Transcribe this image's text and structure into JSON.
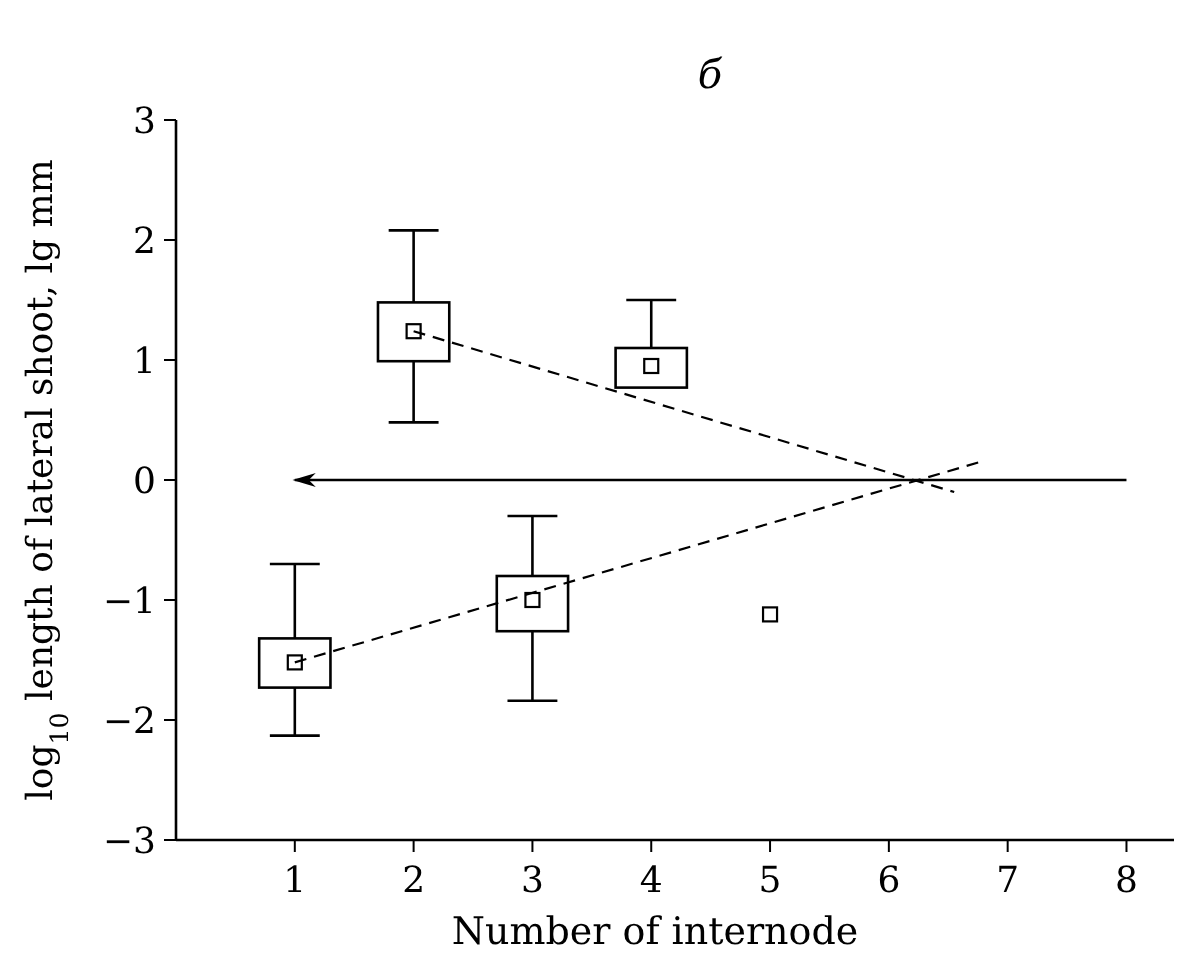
{
  "chart_data": {
    "type": "box",
    "title": "б",
    "xlabel": "Number of internode",
    "ylabel": "log$_{10}$ length of lateral shoot, lg mm",
    "xlim": [
      0,
      8.4
    ],
    "xticks": [
      1,
      2,
      3,
      4,
      5,
      6,
      7,
      8
    ],
    "ylim": [
      -3,
      3
    ],
    "yticks": [
      {
        "value": -3,
        "label": "−3"
      },
      {
        "value": -2,
        "label": "−2"
      },
      {
        "value": -1,
        "label": "−1"
      },
      0,
      1,
      2,
      3
    ],
    "grid": false,
    "ref_lines": [
      {
        "axis": "y",
        "value": 0,
        "color": "#000000"
      }
    ],
    "series": [
      {
        "color": "#000000",
        "x": [
          1,
          2,
          3,
          4
        ],
        "boxes": [
          {
            "low": -2.13,
            "q1": -1.73,
            "q3": -1.32,
            "high": -0.7,
            "mean": -1.52
          },
          {
            "low": 0.48,
            "q1": 0.99,
            "q3": 1.48,
            "high": 2.08,
            "mean": 1.24
          },
          {
            "low": -1.84,
            "q1": -1.26,
            "q3": -0.8,
            "high": -0.3,
            "mean": -1.0
          },
          {
            "low": 0.77,
            "q1": 0.77,
            "q3": 1.1,
            "high": 1.5,
            "mean": 0.95
          }
        ]
      },
      {
        "type": "scatter",
        "color": "#000000",
        "x": [
          5
        ],
        "values": [
          -1.12
        ],
        "marker": "square"
      },
      {
        "type": "line",
        "color": "#000000",
        "x": [
          2,
          6.55
        ],
        "values": [
          1.24,
          -0.1
        ],
        "line_style": "dashed"
      },
      {
        "type": "line",
        "color": "#000000",
        "x": [
          1,
          6.8
        ],
        "values": [
          -1.52,
          0.16
        ],
        "line_style": "dashed"
      }
    ]
  }
}
